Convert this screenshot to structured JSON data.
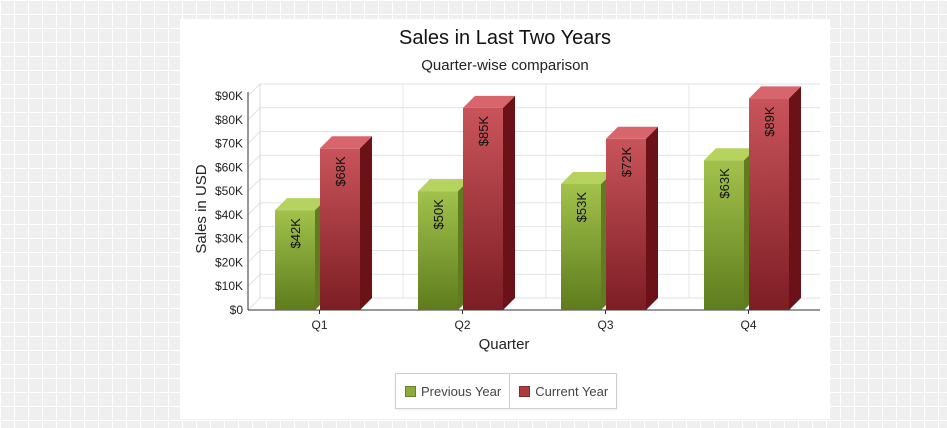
{
  "chart_data": {
    "type": "bar",
    "title": "Sales in Last Two Years",
    "subtitle": "Quarter-wise comparison",
    "xlabel": "Quarter",
    "ylabel": "Sales in USD",
    "categories": [
      "Q1",
      "Q2",
      "Q3",
      "Q4"
    ],
    "ylim": [
      0,
      90000
    ],
    "yticks": [
      0,
      10000,
      20000,
      30000,
      40000,
      50000,
      60000,
      70000,
      80000,
      90000
    ],
    "ytick_labels": [
      "$0",
      "$10K",
      "$20K",
      "$30K",
      "$40K",
      "$50K",
      "$60K",
      "$70K",
      "$80K",
      "$90K"
    ],
    "grid": true,
    "legend_position": "bottom",
    "series": [
      {
        "name": "Previous Year",
        "values": [
          42000,
          50000,
          53000,
          63000
        ],
        "labels": [
          "$42K",
          "$50K",
          "$53K",
          "$63K"
        ],
        "color": "#8bab3a"
      },
      {
        "name": "Current Year",
        "values": [
          68000,
          85000,
          72000,
          89000
        ],
        "labels": [
          "$68K",
          "$85K",
          "$72K",
          "$89K"
        ],
        "color": "#b03a41"
      }
    ]
  }
}
